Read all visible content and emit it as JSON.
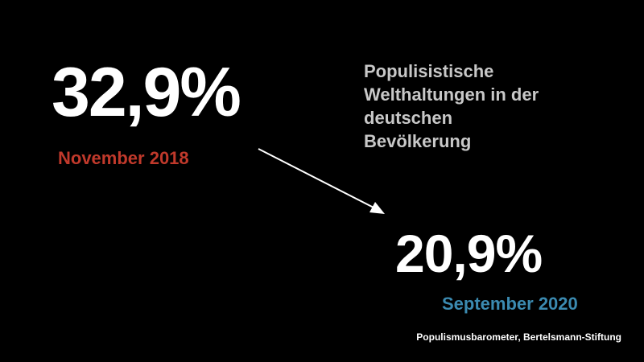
{
  "headline": {
    "lines": [
      "Populisistische",
      "Welthaltungen in der",
      "deutschen",
      "Bevölkerung"
    ]
  },
  "stats": [
    {
      "value": "32,9%",
      "date": "November 2018",
      "date_color": "#c0392b"
    },
    {
      "value": "20,9%",
      "date": "September 2020",
      "date_color": "#3b8ab0"
    }
  ],
  "arrow_icon": "arrow-down-right-icon",
  "source": "Populismusbarometer, Bertelsmann-Stiftung"
}
